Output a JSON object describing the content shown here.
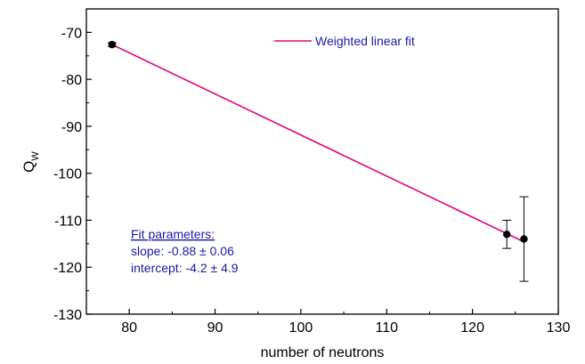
{
  "chart_data": {
    "type": "scatter",
    "xlabel": "number of neutrons",
    "ylabel": "Q",
    "ylabel_sub": "W",
    "xlim": [
      75,
      130
    ],
    "ylim": [
      -130,
      -65
    ],
    "xticks": [
      80,
      90,
      100,
      110,
      120,
      130
    ],
    "yticks": [
      -70,
      -80,
      -90,
      -100,
      -110,
      -120,
      -130
    ],
    "xtick_labels": [
      "80",
      "90",
      "100",
      "110",
      "120",
      "130"
    ],
    "ytick_labels": [
      "-70",
      "-80",
      "-90",
      "-100",
      "-110",
      "-120",
      "-130"
    ],
    "points": [
      {
        "x": 78,
        "y": -72.6,
        "err": 0.4
      },
      {
        "x": 124,
        "y": -113,
        "err": 3
      },
      {
        "x": 126,
        "y": -114,
        "err": 9
      }
    ],
    "fit": {
      "name": "Weighted linear fit",
      "x": [
        78,
        126
      ],
      "y": [
        -72.6,
        -114.6
      ],
      "color": "#e6007e"
    },
    "legend_position": "top-right",
    "annotation": {
      "title": "Fit parameters:",
      "slope": "slope: -0.88 ± 0.06",
      "intercept": "intercept: -4.2 ± 4.9",
      "color": "#1a1aa6"
    },
    "marker_color": "#000000",
    "grid": false
  }
}
